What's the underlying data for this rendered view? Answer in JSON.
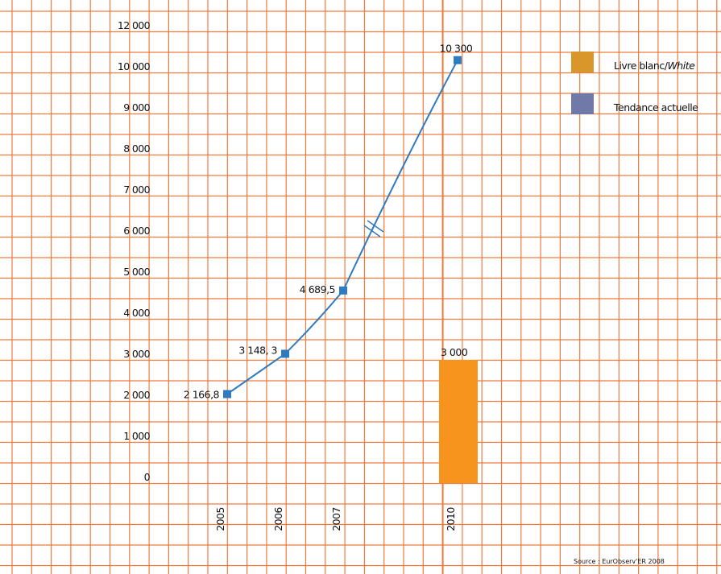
{
  "chart_data": {
    "type": "line",
    "y_ticks": [
      "0",
      "1 000",
      "2 000",
      "3 000",
      "4 000",
      "5 000",
      "6 000",
      "7 000",
      "8 000",
      "9 000",
      "10 000",
      "12 000"
    ],
    "ylim": [
      0,
      12000
    ],
    "categories": [
      "2005",
      "2006",
      "2007",
      "2010"
    ],
    "series": [
      {
        "name": "Tendance actuelle",
        "type": "line",
        "color": "#2f7bbf",
        "x": [
          "2005",
          "2006",
          "2007",
          "2010"
        ],
        "values": [
          2166.8,
          3148.3,
          4689.5,
          10300
        ],
        "labels": [
          "2 166,8",
          "3 148, 3",
          "4 689,5",
          "10 300"
        ],
        "axis_break_between": [
          "2007",
          "2010"
        ]
      },
      {
        "name": "Livre blanc/White",
        "type": "bar",
        "color": "#f7941d",
        "x": [
          "2010"
        ],
        "values": [
          3000
        ],
        "labels": [
          "3 000"
        ]
      }
    ],
    "legend": {
      "placement": "top-right",
      "items": [
        {
          "label_roman": "Livre blanc/",
          "label_italic": "White",
          "color": "#d9962a"
        },
        {
          "label_roman": "Tendance actuelle",
          "label_italic": "",
          "color": "#7179a8"
        }
      ]
    },
    "source": "Source : EurObserv'ER 2008",
    "grid": true,
    "grid_color": "#f07a3c"
  }
}
